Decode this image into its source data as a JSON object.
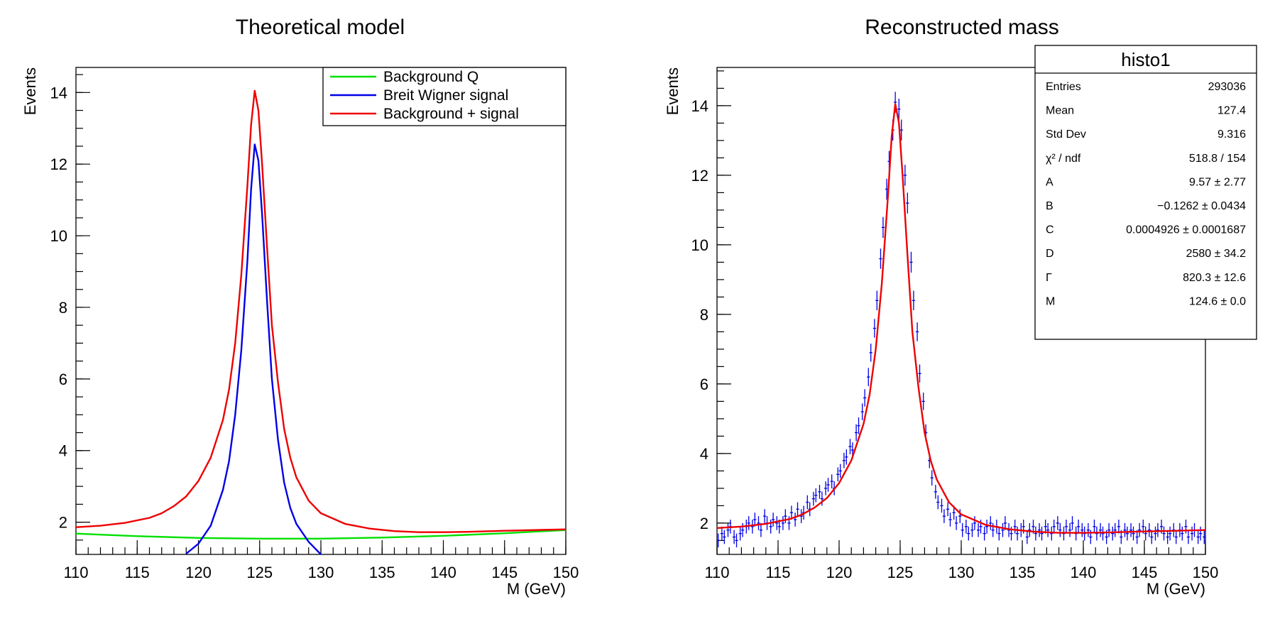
{
  "chart_data": [
    {
      "type": "line",
      "title": "Theoretical model",
      "xlabel": "M (GeV)",
      "ylabel": "Events",
      "xlim": [
        110,
        150
      ],
      "ylim": [
        1.1,
        14.7
      ],
      "x_ticks": [
        110,
        115,
        120,
        125,
        130,
        135,
        140,
        145,
        150
      ],
      "y_ticks": [
        2,
        4,
        6,
        8,
        10,
        12,
        14
      ],
      "grid": false,
      "legend": "top-right",
      "series": [
        {
          "name": "Background Q",
          "color": "#00e000",
          "x": [
            110,
            115,
            120,
            125,
            130,
            135,
            140,
            145,
            150
          ],
          "y": [
            1.68,
            1.61,
            1.56,
            1.54,
            1.54,
            1.57,
            1.62,
            1.69,
            1.78
          ]
        },
        {
          "name": "Breit Wigner signal",
          "color": "#0000e6",
          "x": [
            119.0,
            120.0,
            121.0,
            122.0,
            122.5,
            123.0,
            123.5,
            124.0,
            124.3,
            124.6,
            124.9,
            125.2,
            125.6,
            126.0,
            126.5,
            127.0,
            127.5,
            128.0,
            129.0,
            130.0
          ],
          "y": [
            1.12,
            1.4,
            1.9,
            2.9,
            3.7,
            5.0,
            6.8,
            9.3,
            11.3,
            12.55,
            12.1,
            10.6,
            8.2,
            6.0,
            4.3,
            3.1,
            2.4,
            1.95,
            1.45,
            1.1
          ]
        },
        {
          "name": "Background + signal",
          "color": "#ee0000",
          "x": [
            110,
            112,
            114,
            116,
            117,
            118,
            119,
            120,
            121,
            122,
            122.5,
            123,
            123.5,
            124,
            124.3,
            124.6,
            124.9,
            125.2,
            125.6,
            126,
            126.5,
            127,
            127.5,
            128,
            129,
            130,
            132,
            134,
            136,
            138,
            140,
            142,
            145,
            150
          ],
          "y": [
            1.86,
            1.9,
            1.98,
            2.12,
            2.25,
            2.45,
            2.72,
            3.15,
            3.8,
            4.85,
            5.7,
            7.0,
            8.9,
            11.4,
            13.1,
            14.05,
            13.5,
            12.0,
            9.7,
            7.5,
            5.9,
            4.6,
            3.8,
            3.25,
            2.6,
            2.25,
            1.95,
            1.82,
            1.75,
            1.72,
            1.72,
            1.73,
            1.76,
            1.8
          ]
        }
      ]
    },
    {
      "type": "scatter",
      "title": "Reconstructed mass",
      "xlabel": "M (GeV)",
      "ylabel": "Events",
      "xlim": [
        110,
        150
      ],
      "ylim": [
        1.1,
        15.1
      ],
      "x_ticks": [
        110,
        115,
        120,
        125,
        130,
        135,
        140,
        145,
        150
      ],
      "y_ticks": [
        2,
        4,
        6,
        8,
        10,
        12,
        14
      ],
      "grid": false,
      "colors": {
        "points": "#0000e6",
        "fit": "#ee0000"
      },
      "bin_width": 0.25,
      "fit": {
        "x": [
          110,
          112,
          114,
          116,
          117,
          118,
          119,
          120,
          121,
          122,
          122.5,
          123,
          123.5,
          124,
          124.3,
          124.6,
          124.9,
          125.2,
          125.6,
          126,
          126.5,
          127,
          127.5,
          128,
          129,
          130,
          132,
          134,
          136,
          138,
          140,
          142,
          145,
          150
        ],
        "y": [
          1.86,
          1.9,
          1.98,
          2.12,
          2.25,
          2.45,
          2.72,
          3.15,
          3.8,
          4.85,
          5.7,
          7.0,
          8.9,
          11.4,
          13.1,
          14.05,
          13.5,
          12.0,
          9.7,
          7.5,
          5.9,
          4.6,
          3.8,
          3.25,
          2.6,
          2.25,
          1.95,
          1.82,
          1.75,
          1.72,
          1.72,
          1.73,
          1.76,
          1.8
        ]
      },
      "points": {
        "x": [
          110.1,
          110.4,
          110.6,
          110.9,
          111.1,
          111.4,
          111.6,
          111.9,
          112.1,
          112.4,
          112.6,
          112.9,
          113.1,
          113.4,
          113.6,
          113.9,
          114.1,
          114.4,
          114.6,
          114.9,
          115.1,
          115.4,
          115.6,
          115.9,
          116.1,
          116.4,
          116.6,
          116.9,
          117.1,
          117.4,
          117.6,
          117.9,
          118.1,
          118.4,
          118.6,
          118.9,
          119.1,
          119.4,
          119.6,
          119.9,
          120.1,
          120.4,
          120.6,
          120.9,
          121.1,
          121.4,
          121.6,
          121.9,
          122.1,
          122.4,
          122.6,
          122.9,
          123.1,
          123.4,
          123.6,
          123.9,
          124.1,
          124.4,
          124.6,
          124.9,
          125.1,
          125.4,
          125.6,
          125.9,
          126.1,
          126.4,
          126.6,
          126.9,
          127.1,
          127.4,
          127.6,
          127.9,
          128.1,
          128.4,
          128.6,
          128.9,
          129.1,
          129.4,
          129.6,
          129.9,
          130.1,
          130.4,
          130.6,
          130.9,
          131.1,
          131.4,
          131.6,
          131.9,
          132.1,
          132.4,
          132.6,
          132.9,
          133.1,
          133.4,
          133.6,
          133.9,
          134.1,
          134.4,
          134.6,
          134.9,
          135.1,
          135.4,
          135.6,
          135.9,
          136.1,
          136.4,
          136.6,
          136.9,
          137.1,
          137.4,
          137.6,
          137.9,
          138.1,
          138.4,
          138.6,
          138.9,
          139.1,
          139.4,
          139.6,
          139.9,
          140.1,
          140.4,
          140.6,
          140.9,
          141.1,
          141.4,
          141.6,
          141.9,
          142.1,
          142.4,
          142.6,
          142.9,
          143.1,
          143.4,
          143.6,
          143.9,
          144.1,
          144.4,
          144.6,
          144.9,
          145.1,
          145.4,
          145.6,
          145.9,
          146.1,
          146.4,
          146.6,
          146.9,
          147.1,
          147.4,
          147.6,
          147.9,
          148.1,
          148.4,
          148.6,
          148.9,
          149.1,
          149.4,
          149.6,
          149.9
        ],
        "y": [
          1.5,
          1.7,
          1.6,
          1.8,
          1.9,
          1.6,
          1.5,
          1.7,
          1.8,
          1.9,
          2.0,
          1.9,
          2.1,
          2.0,
          1.8,
          2.2,
          2.0,
          1.9,
          2.1,
          2.0,
          1.9,
          2.0,
          2.2,
          2.0,
          2.3,
          2.1,
          2.4,
          2.2,
          2.3,
          2.6,
          2.4,
          2.7,
          2.8,
          2.9,
          2.7,
          3.0,
          3.1,
          3.2,
          3.0,
          3.4,
          3.5,
          3.8,
          3.9,
          4.2,
          4.1,
          4.6,
          4.8,
          5.2,
          5.6,
          6.2,
          6.9,
          7.6,
          8.4,
          9.6,
          10.5,
          11.6,
          12.4,
          13.3,
          14.1,
          13.9,
          13.3,
          12.0,
          11.2,
          9.5,
          8.4,
          7.5,
          6.3,
          5.5,
          4.6,
          3.8,
          3.3,
          2.9,
          2.6,
          2.5,
          2.2,
          2.4,
          2.1,
          2.3,
          2.0,
          2.2,
          1.8,
          1.9,
          1.7,
          1.8,
          2.0,
          1.8,
          1.9,
          1.7,
          1.9,
          2.0,
          1.8,
          1.9,
          1.7,
          1.8,
          2.0,
          1.8,
          1.7,
          1.9,
          1.7,
          1.8,
          1.9,
          1.6,
          1.8,
          1.9,
          1.7,
          1.8,
          1.7,
          1.9,
          1.8,
          1.7,
          1.9,
          2.0,
          1.8,
          1.7,
          1.9,
          1.8,
          2.0,
          1.7,
          1.9,
          1.8,
          1.7,
          1.8,
          1.6,
          1.9,
          1.7,
          1.8,
          1.7,
          1.6,
          1.8,
          1.7,
          1.8,
          1.9,
          1.6,
          1.8,
          1.7,
          1.8,
          1.7,
          1.6,
          1.8,
          1.9,
          1.7,
          1.8,
          1.6,
          1.7,
          1.8,
          1.9,
          1.7,
          1.6,
          1.7,
          1.8,
          1.6,
          1.8,
          1.7,
          1.9,
          1.6,
          1.7,
          1.8,
          1.6,
          1.7,
          1.6
        ],
        "err": [
          0.2,
          0.2,
          0.2,
          0.2,
          0.2,
          0.2,
          0.2,
          0.2,
          0.2,
          0.2,
          0.2,
          0.2,
          0.2,
          0.2,
          0.2,
          0.2,
          0.2,
          0.2,
          0.2,
          0.2,
          0.2,
          0.2,
          0.2,
          0.2,
          0.2,
          0.2,
          0.2,
          0.2,
          0.2,
          0.2,
          0.2,
          0.2,
          0.2,
          0.2,
          0.2,
          0.2,
          0.2,
          0.2,
          0.2,
          0.2,
          0.2,
          0.22,
          0.22,
          0.22,
          0.22,
          0.24,
          0.24,
          0.24,
          0.25,
          0.26,
          0.26,
          0.27,
          0.28,
          0.29,
          0.3,
          0.3,
          0.3,
          0.3,
          0.3,
          0.3,
          0.3,
          0.3,
          0.3,
          0.3,
          0.28,
          0.27,
          0.26,
          0.25,
          0.24,
          0.22,
          0.22,
          0.2,
          0.2,
          0.2,
          0.2,
          0.2,
          0.2,
          0.2,
          0.2,
          0.2,
          0.2,
          0.2,
          0.2,
          0.2,
          0.2,
          0.2,
          0.2,
          0.2,
          0.2,
          0.2,
          0.2,
          0.2,
          0.2,
          0.2,
          0.2,
          0.2,
          0.2,
          0.2,
          0.2,
          0.2,
          0.2,
          0.2,
          0.2,
          0.2,
          0.2,
          0.2,
          0.2,
          0.2,
          0.2,
          0.2,
          0.2,
          0.2,
          0.2,
          0.2,
          0.2,
          0.2,
          0.2,
          0.2,
          0.2,
          0.2,
          0.2,
          0.2,
          0.2,
          0.2,
          0.2,
          0.2,
          0.2,
          0.2,
          0.2,
          0.2,
          0.2,
          0.2,
          0.2,
          0.2,
          0.2,
          0.2,
          0.2,
          0.2,
          0.2,
          0.2,
          0.2,
          0.2,
          0.2,
          0.2,
          0.2,
          0.2,
          0.2,
          0.2,
          0.2,
          0.2,
          0.2,
          0.2,
          0.2,
          0.2,
          0.2,
          0.2,
          0.2,
          0.2,
          0.2,
          0.2
        ]
      },
      "stats_box": {
        "title": "histo1",
        "rows": [
          {
            "label": "Entries",
            "value": "293036"
          },
          {
            "label": "Mean",
            "value": "127.4"
          },
          {
            "label": "Std Dev",
            "value": "9.316"
          },
          {
            "label": "χ² / ndf",
            "value": "518.8 / 154"
          },
          {
            "label": "A",
            "value": "9.57 ± 2.77"
          },
          {
            "label": "B",
            "value": "−0.1262 ± 0.0434"
          },
          {
            "label": "C",
            "value": "0.0004926 ± 0.0001687"
          },
          {
            "label": "D",
            "value": "2580 ± 34.2"
          },
          {
            "label": "Γ",
            "value": "820.3 ± 12.6"
          },
          {
            "label": "M",
            "value": "124.6 ± 0.0"
          }
        ]
      }
    }
  ]
}
